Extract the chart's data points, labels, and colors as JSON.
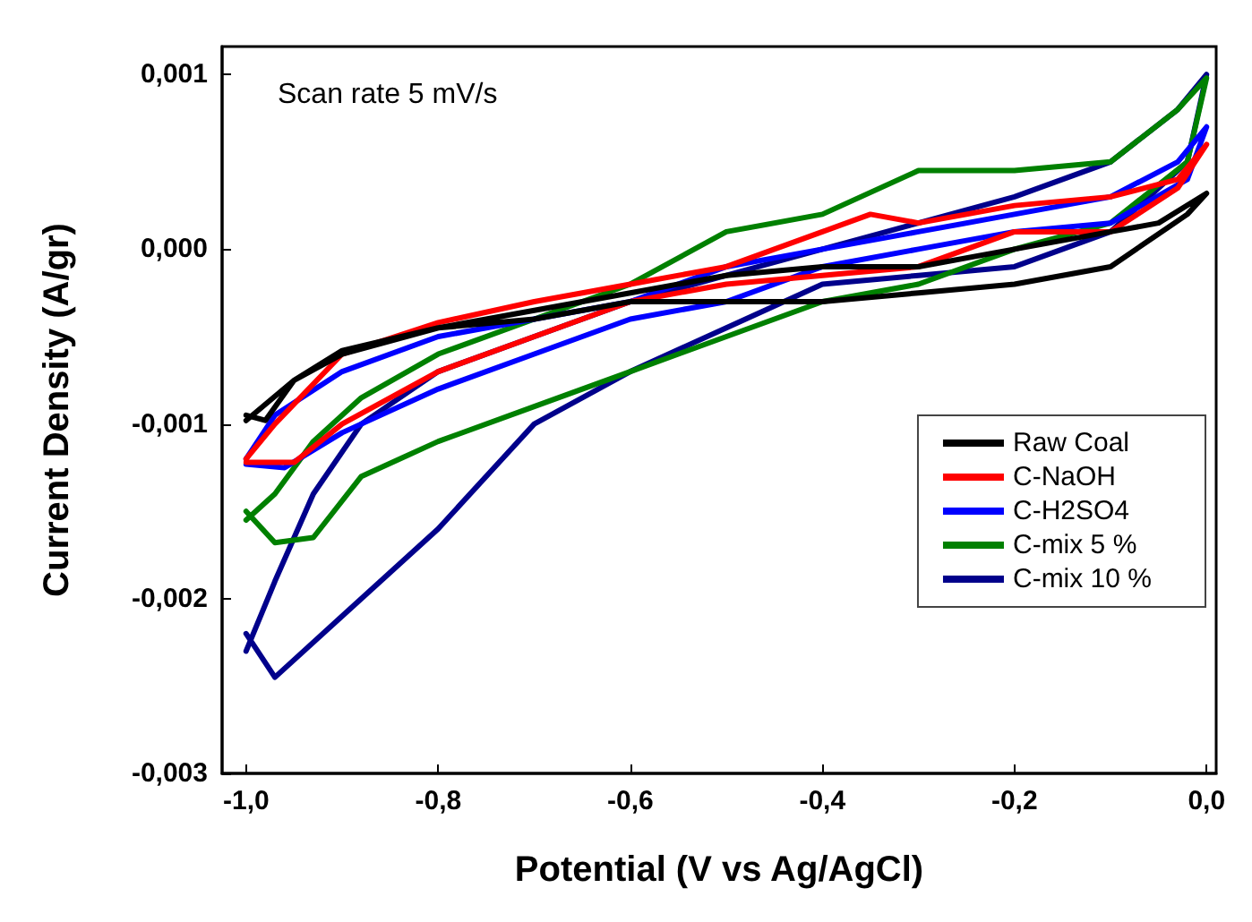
{
  "chart_data": {
    "type": "line",
    "xlabel": "Potential (V vs Ag/AgCl)",
    "ylabel": "Current Density (A/gr)",
    "annotations": [
      "Scan rate 5 mV/s"
    ],
    "xlim": [
      -1.025,
      0.01
    ],
    "ylim": [
      -0.003,
      0.00116
    ],
    "xticks": [
      {
        "value": -1,
        "label": "-1,0"
      },
      {
        "value": -0.8,
        "label": "-0,8"
      },
      {
        "value": -0.6,
        "label": "-0,6"
      },
      {
        "value": -0.4,
        "label": "-0,4"
      },
      {
        "value": -0.2,
        "label": "-0,2"
      },
      {
        "value": 0,
        "label": "0,0"
      }
    ],
    "yticks": [
      {
        "value": -0.003,
        "label": "-0,003"
      },
      {
        "value": -0.002,
        "label": "-0,002"
      },
      {
        "value": -0.001,
        "label": "-0,001"
      },
      {
        "value": 0,
        "label": "0,000"
      },
      {
        "value": 0.001,
        "label": "0,001"
      }
    ],
    "grid": false,
    "legend": "right",
    "line_style": "solid",
    "marker": "none",
    "series": [
      {
        "name": "Raw Coal",
        "color": "#000000",
        "x": [
          -1.0,
          -0.95,
          -0.9,
          -0.8,
          -0.7,
          -0.6,
          -0.5,
          -0.4,
          -0.3,
          -0.2,
          -0.1,
          -0.05,
          0,
          -0.02,
          -0.1,
          -0.2,
          -0.3,
          -0.4,
          -0.5,
          -0.6,
          -0.7,
          -0.8,
          -0.9,
          -0.95,
          -0.98,
          -1.0
        ],
        "values": [
          -0.00098,
          -0.00075,
          -0.0006,
          -0.00045,
          -0.00035,
          -0.00025,
          -0.00015,
          -0.0001,
          -0.0001,
          0,
          0.0001,
          0.00015,
          0.00032,
          0.0002,
          -0.0001,
          -0.0002,
          -0.00025,
          -0.0003,
          -0.0003,
          -0.0003,
          -0.0004,
          -0.00045,
          -0.00058,
          -0.00075,
          -0.00098,
          -0.00095
        ]
      },
      {
        "name": "C-NaOH",
        "color": "#ff0000",
        "x": [
          -1.0,
          -0.97,
          -0.9,
          -0.8,
          -0.7,
          -0.6,
          -0.5,
          -0.4,
          -0.35,
          -0.3,
          -0.2,
          -0.1,
          -0.03,
          0,
          -0.03,
          -0.1,
          -0.2,
          -0.3,
          -0.4,
          -0.5,
          -0.6,
          -0.7,
          -0.8,
          -0.9,
          -0.95,
          -1.0
        ],
        "values": [
          -0.0012,
          -0.001,
          -0.0006,
          -0.00042,
          -0.0003,
          -0.0002,
          -0.0001,
          0.0001,
          0.0002,
          0.00015,
          0.00025,
          0.0003,
          0.0004,
          0.0006,
          0.00035,
          0.0001,
          0.0001,
          -0.0001,
          -0.00015,
          -0.0002,
          -0.0003,
          -0.0005,
          -0.0007,
          -0.001,
          -0.00122,
          -0.00122
        ]
      },
      {
        "name": "C-H2SO4",
        "color": "#0000ff",
        "x": [
          -1.0,
          -0.97,
          -0.9,
          -0.8,
          -0.7,
          -0.6,
          -0.5,
          -0.4,
          -0.3,
          -0.2,
          -0.1,
          -0.03,
          0,
          -0.02,
          -0.1,
          -0.2,
          -0.3,
          -0.4,
          -0.5,
          -0.6,
          -0.7,
          -0.8,
          -0.9,
          -0.96,
          -1.0
        ],
        "values": [
          -0.0012,
          -0.00095,
          -0.0007,
          -0.0005,
          -0.0004,
          -0.0003,
          -0.0001,
          0,
          0.0001,
          0.0002,
          0.0003,
          0.0005,
          0.0007,
          0.0004,
          0.00015,
          0.0001,
          0,
          -0.0001,
          -0.0003,
          -0.0004,
          -0.0006,
          -0.0008,
          -0.00105,
          -0.00125,
          -0.00123
        ]
      },
      {
        "name": "C-mix 5 %",
        "color": "#008000",
        "x": [
          -1.0,
          -0.97,
          -0.93,
          -0.88,
          -0.8,
          -0.7,
          -0.6,
          -0.5,
          -0.4,
          -0.3,
          -0.2,
          -0.1,
          -0.03,
          0,
          -0.02,
          -0.1,
          -0.2,
          -0.3,
          -0.4,
          -0.5,
          -0.6,
          -0.7,
          -0.8,
          -0.88,
          -0.93,
          -0.97,
          -1.0
        ],
        "values": [
          -0.00155,
          -0.0014,
          -0.0011,
          -0.00085,
          -0.0006,
          -0.0004,
          -0.0002,
          0.0001,
          0.0002,
          0.00045,
          0.00045,
          0.0005,
          0.0008,
          0.00098,
          0.0005,
          0.00015,
          0,
          -0.0002,
          -0.0003,
          -0.0005,
          -0.0007,
          -0.0009,
          -0.0011,
          -0.0013,
          -0.00165,
          -0.00168,
          -0.0015
        ]
      },
      {
        "name": "C-mix 10 %",
        "color": "#00008b",
        "x": [
          -1.0,
          -0.97,
          -0.93,
          -0.88,
          -0.8,
          -0.7,
          -0.6,
          -0.5,
          -0.4,
          -0.3,
          -0.2,
          -0.1,
          -0.03,
          0,
          -0.02,
          -0.1,
          -0.2,
          -0.3,
          -0.4,
          -0.5,
          -0.6,
          -0.7,
          -0.8,
          -0.9,
          -0.97,
          -1.0
        ],
        "values": [
          -0.0023,
          -0.0019,
          -0.0014,
          -0.001,
          -0.0007,
          -0.0005,
          -0.0003,
          -0.00015,
          0,
          0.00015,
          0.0003,
          0.0005,
          0.0008,
          0.001,
          0.0005,
          0.0001,
          -0.0001,
          -0.00015,
          -0.0002,
          -0.00045,
          -0.0007,
          -0.001,
          -0.0016,
          -0.0021,
          -0.00245,
          -0.0022
        ]
      }
    ]
  }
}
